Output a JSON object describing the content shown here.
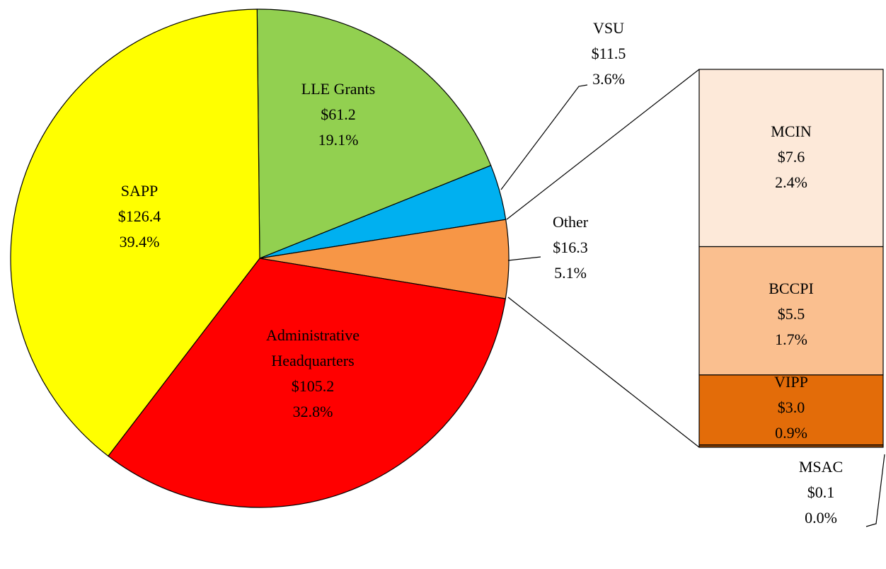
{
  "chart_data": {
    "type": "pie-of-bar",
    "categories": [
      "LLE Grants",
      "VSU",
      "Other",
      "Administrative Headquarters",
      "SAPP"
    ],
    "values": [
      61.2,
      11.5,
      16.3,
      105.2,
      126.4
    ],
    "value_labels": [
      "$61.2",
      "$11.5",
      "$16.3",
      "$105.2",
      "$126.4"
    ],
    "percent_labels": [
      "19.1%",
      "3.6%",
      "5.1%",
      "32.8%",
      "39.4%"
    ],
    "colors": [
      "#92d050",
      "#00b0f0",
      "#f79646",
      "#ff0000",
      "#ffff00"
    ],
    "breakdown": {
      "categories": [
        "MCIN",
        "BCCPI",
        "VIPP",
        "MSAC"
      ],
      "values": [
        7.6,
        5.5,
        3.0,
        0.1
      ],
      "value_labels": [
        "$7.6",
        "$5.5",
        "$3.0",
        "$0.1"
      ],
      "percent_labels": [
        "2.4%",
        "1.7%",
        "0.9%",
        "0.0%"
      ],
      "colors": [
        "#fde9d9",
        "#fabf8f",
        "#e36c09",
        "#974706"
      ]
    }
  }
}
